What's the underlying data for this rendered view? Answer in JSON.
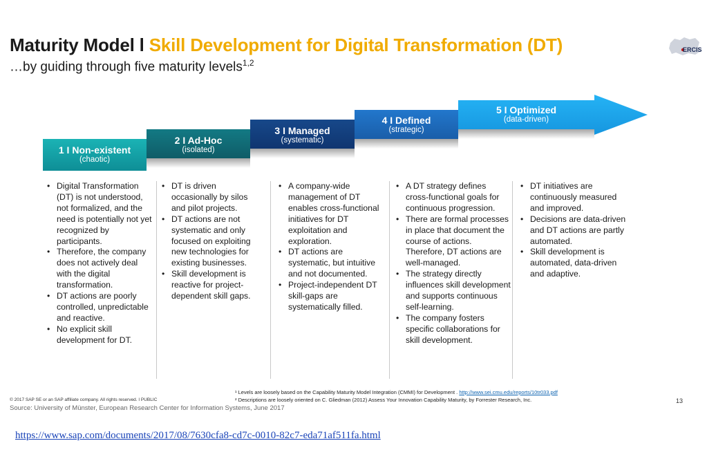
{
  "header": {
    "title_prefix": "Maturity Model l ",
    "title_accent": "Skill Development for Digital Transformation (DT)",
    "subtitle": "…by guiding through five maturity levels",
    "subtitle_sup": "1,2",
    "logo_text": "ERCIS"
  },
  "levels": [
    {
      "label": "1 I Non-existent",
      "sub": "(chaotic)",
      "color": "#13a1a6"
    },
    {
      "label": "2 I Ad-Hoc",
      "sub": "(isolated)",
      "color": "#126b76"
    },
    {
      "label": "3 I Managed",
      "sub": "(systematic)",
      "color": "#133f7c"
    },
    {
      "label": "4 I Defined",
      "sub": "(strategic)",
      "color": "#1e6bc0"
    },
    {
      "label": "5 I Optimized",
      "sub": "(data-driven)",
      "color": "#1da7ef"
    }
  ],
  "columns": [
    [
      "Digital Transformation (DT) is not understood, not formalized, and the need is potentially not yet recognized by participants.",
      "Therefore, the company does not actively deal with the digital transformation.",
      "DT actions are poorly controlled, unpredictable and reactive.",
      "No explicit skill development for DT."
    ],
    [
      "DT is driven occasionally by silos and pilot projects.",
      "DT actions are not systematic and only focused on exploiting new technologies for existing businesses.",
      "Skill development is reactive for project-dependent skill gaps."
    ],
    [
      "A company-wide management of DT enables cross-functional initiatives for DT exploitation and exploration.",
      "DT actions are systematic, but intuitive and not documented.",
      "Project-independent DT skill-gaps are systematically filled."
    ],
    [
      "A DT strategy defines cross-functional goals for continuous progression.",
      "There are formal processes in place that document the course of actions. Therefore, DT actions are well-managed.",
      "The strategy directly influences skill development and supports continuous self-learning.",
      "The company fosters specific collaborations for skill development."
    ],
    [
      "DT initiatives are continuously measured and improved.",
      "Decisions are data-driven and DT actions are partly automated.",
      "Skill development is automated, data-driven and adaptive."
    ]
  ],
  "footnotes": {
    "fn1_text": "¹ Levels are loosely based on the Capability Maturity Model Integration (CMMI) for Development . ",
    "fn1_link": "http://www.sei.cmu.edu/reports/10tr033.pdf",
    "fn2_text": "² Descriptions are loosely oriented on C. Gliedman (2012) Assess Your Innovation Capability Maturity, by Forrester Research, Inc."
  },
  "footer": {
    "copyright": "© 2017 SAP SE or an SAP affiliate company. All rights reserved.  ǀ  PUBLIC",
    "page_number": "13",
    "source": "Source: University of Münster, European Research Center for Information Systems, June 2017"
  },
  "url": "https://www.sap.com/documents/2017/08/7630cfa8-cd7c-0010-82c7-eda71af511fa.html"
}
